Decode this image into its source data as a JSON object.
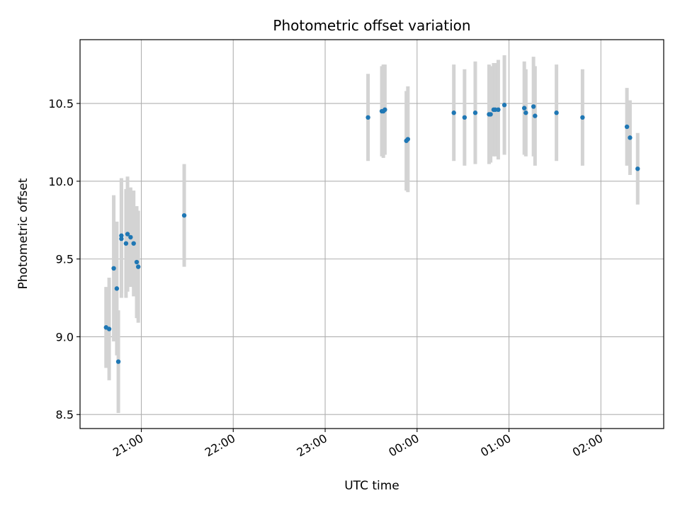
{
  "chart_data": {
    "type": "scatter",
    "title": "Photometric offset variation",
    "xlabel": "UTC time",
    "ylabel": "Photometric offset",
    "x_unit": "UTC time (HH:MM, evening through next morning)",
    "xlim": [
      "20:20",
      "02:41"
    ],
    "ylim": [
      8.41,
      10.91
    ],
    "x_ticks": [
      "21:00",
      "22:00",
      "23:00",
      "00:00",
      "01:00",
      "02:00"
    ],
    "y_ticks": [
      "8.5",
      "9.0",
      "9.5",
      "10.0",
      "10.5"
    ],
    "grid": true,
    "legend": "none",
    "colors": {
      "marker": "#1f77b4",
      "errorbar": "#d3d3d3",
      "grid": "#b0b0b0"
    },
    "series": [
      {
        "marker": "dot",
        "points": [
          {
            "x": "20:37",
            "y": 9.06,
            "yerr": 0.26
          },
          {
            "x": "20:39",
            "y": 9.05,
            "yerr": 0.33
          },
          {
            "x": "20:42",
            "y": 9.44,
            "yerr": 0.47
          },
          {
            "x": "20:44",
            "y": 9.31,
            "yerr": 0.43
          },
          {
            "x": "20:45",
            "y": 8.84,
            "yerr": 0.33
          },
          {
            "x": "20:47",
            "y": 9.63,
            "yerr": 0.38
          },
          {
            "x": "20:47",
            "y": 9.65,
            "yerr": 0.37
          },
          {
            "x": "20:50",
            "y": 9.6,
            "yerr": 0.35
          },
          {
            "x": "20:51",
            "y": 9.66,
            "yerr": 0.37
          },
          {
            "x": "20:53",
            "y": 9.64,
            "yerr": 0.32
          },
          {
            "x": "20:55",
            "y": 9.6,
            "yerr": 0.34
          },
          {
            "x": "20:57",
            "y": 9.48,
            "yerr": 0.36
          },
          {
            "x": "20:58",
            "y": 9.45,
            "yerr": 0.36
          },
          {
            "x": "21:28",
            "y": 9.78,
            "yerr": 0.33
          },
          {
            "x": "23:28",
            "y": 10.41,
            "yerr": 0.28
          },
          {
            "x": "23:37",
            "y": 10.45,
            "yerr": 0.29
          },
          {
            "x": "23:38",
            "y": 10.45,
            "yerr": 0.3
          },
          {
            "x": "23:39",
            "y": 10.46,
            "yerr": 0.29
          },
          {
            "x": "23:53",
            "y": 10.26,
            "yerr": 0.32
          },
          {
            "x": "23:54",
            "y": 10.27,
            "yerr": 0.34
          },
          {
            "x": "00:24",
            "y": 10.44,
            "yerr": 0.31
          },
          {
            "x": "00:31",
            "y": 10.41,
            "yerr": 0.31
          },
          {
            "x": "00:38",
            "y": 10.44,
            "yerr": 0.33
          },
          {
            "x": "00:47",
            "y": 10.43,
            "yerr": 0.32
          },
          {
            "x": "00:48",
            "y": 10.43,
            "yerr": 0.31
          },
          {
            "x": "00:50",
            "y": 10.46,
            "yerr": 0.3
          },
          {
            "x": "00:51",
            "y": 10.46,
            "yerr": 0.3
          },
          {
            "x": "00:53",
            "y": 10.46,
            "yerr": 0.32
          },
          {
            "x": "00:57",
            "y": 10.49,
            "yerr": 0.32
          },
          {
            "x": "01:10",
            "y": 10.47,
            "yerr": 0.3
          },
          {
            "x": "01:11",
            "y": 10.44,
            "yerr": 0.28
          },
          {
            "x": "01:16",
            "y": 10.48,
            "yerr": 0.32
          },
          {
            "x": "01:17",
            "y": 10.42,
            "yerr": 0.32
          },
          {
            "x": "01:31",
            "y": 10.44,
            "yerr": 0.31
          },
          {
            "x": "01:48",
            "y": 10.41,
            "yerr": 0.31
          },
          {
            "x": "02:17",
            "y": 10.35,
            "yerr": 0.25
          },
          {
            "x": "02:19",
            "y": 10.28,
            "yerr": 0.24
          },
          {
            "x": "02:24",
            "y": 10.08,
            "yerr": 0.23
          }
        ]
      }
    ]
  }
}
